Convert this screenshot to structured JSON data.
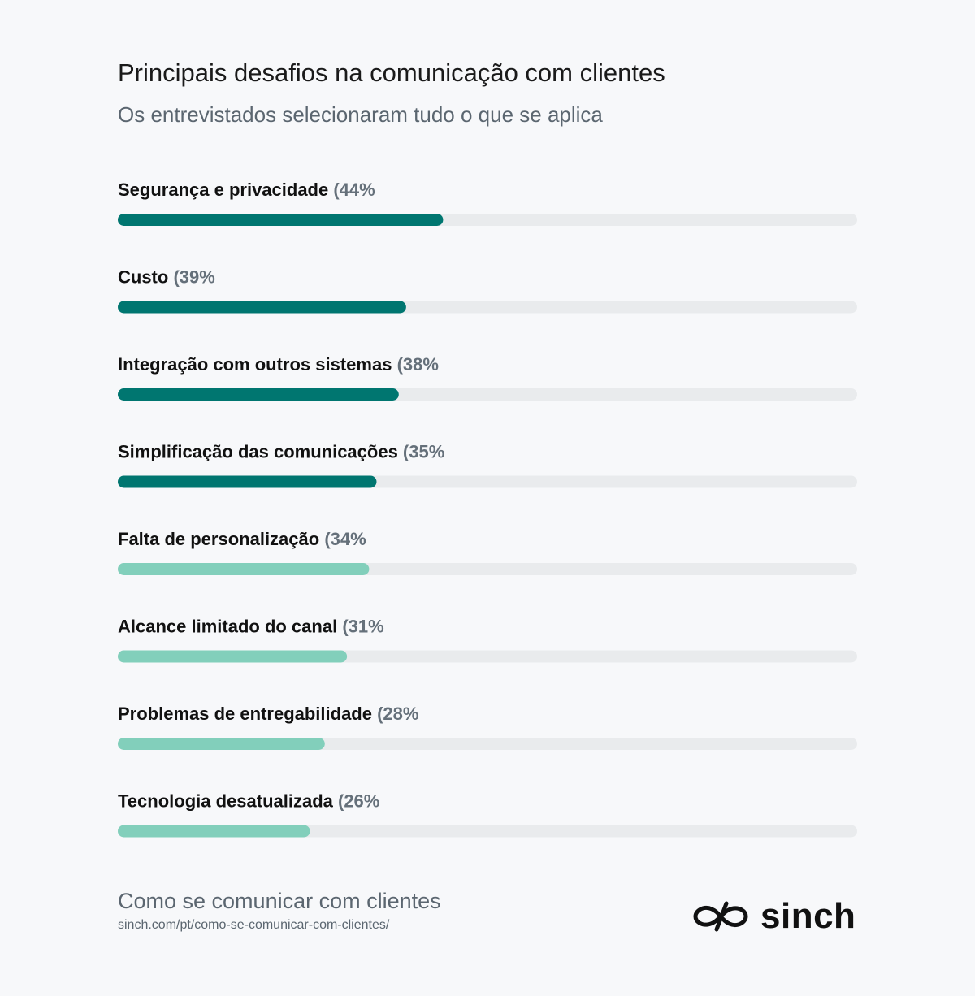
{
  "title": "Principais desafios na comunicação com clientes",
  "subtitle": "Os entrevistados selecionaram tudo o que se aplica",
  "chart_data": {
    "type": "bar",
    "orientation": "horizontal",
    "max": 100,
    "categories": [
      "Segurança e privacidade",
      "Custo",
      "Integração com outros sistemas",
      "Simplificação das comunicações",
      "Falta de personalização",
      "Alcance limitado do canal",
      "Problemas de entregabilidade",
      "Tecnologia desatualizada"
    ],
    "values": [
      44,
      39,
      38,
      35,
      34,
      31,
      28,
      26
    ],
    "value_labels": [
      "(44%",
      "(39%",
      "(38%",
      "(35%",
      "(34%",
      "(31%",
      "(28%",
      "(26%"
    ],
    "bar_colors": [
      "#007670",
      "#007670",
      "#007670",
      "#007670",
      "#82cfbb",
      "#82cfbb",
      "#82cfbb",
      "#82cfbb"
    ],
    "track_color": "#e9ebed"
  },
  "footer": {
    "title": "Como se comunicar com clientes",
    "url": "sinch.com/pt/como-se-comunicar-com-clientes/"
  },
  "logo": {
    "text": "sinch",
    "icon": "sinch-infinity-icon"
  }
}
